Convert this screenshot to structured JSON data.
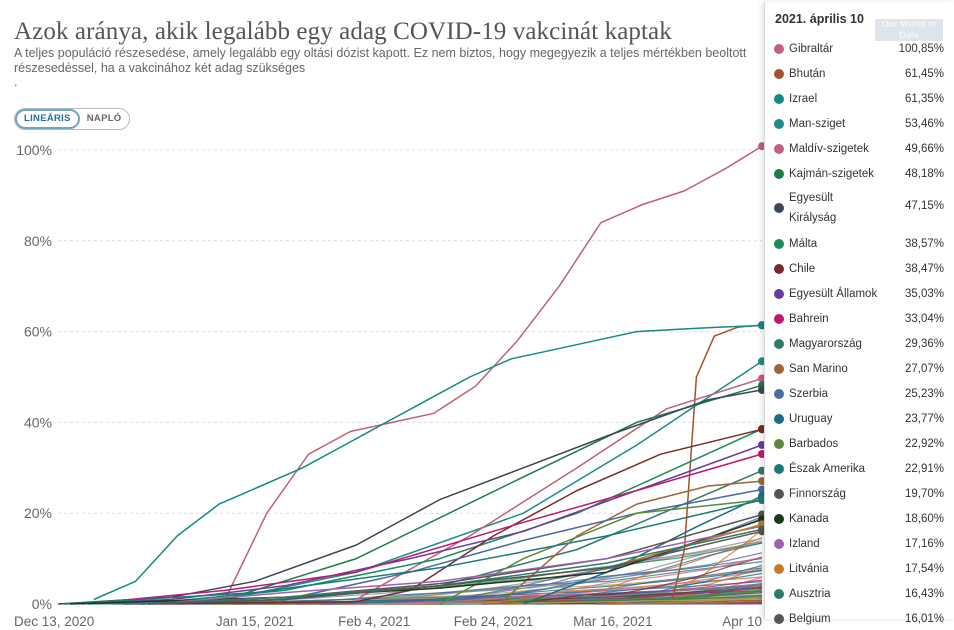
{
  "title": "Azok aránya, akik legalább egy adag COVID-19 vakcinát kaptak",
  "subtitle": "A teljes populáció részesedése, amely legalább egy oltási dózist kapott. Ez nem biztos, hogy megegyezik a teljes mértékben beoltott részesedéssel, ha a vakcinához két adag szükséges",
  "subtitle_dot": ".",
  "toggle": {
    "linear_label": "LINEÁRIS",
    "log_label": "NAPLÓ",
    "selected": "linear"
  },
  "logo_text": "Our World in Data",
  "tooltip": {
    "date": "2021. április 10",
    "rows": [
      {
        "name": "Gibraltár",
        "value": "100,85%",
        "color": "#c06079"
      },
      {
        "name": "Bhután",
        "value": "61,45%",
        "color": "#a0522d"
      },
      {
        "name": "Izrael",
        "value": "61,35%",
        "color": "#138a86"
      },
      {
        "name": "Man-sziget",
        "value": "53,46%",
        "color": "#1f8a8a"
      },
      {
        "name": "Maldív-szigetek",
        "value": "49,66%",
        "color": "#c0607a"
      },
      {
        "name": "Kajmán-szigetek",
        "value": "48,18%",
        "color": "#1e7d4b"
      },
      {
        "name": "Egyesült Királyság",
        "value": "47,15%",
        "color": "#3a4556"
      },
      {
        "name": "Málta",
        "value": "38,57%",
        "color": "#178c5a"
      },
      {
        "name": "Chile",
        "value": "38,47%",
        "color": "#7a2a2a"
      },
      {
        "name": "Egyesült Államok",
        "value": "35,03%",
        "color": "#6a3d9a"
      },
      {
        "name": "Bahrein",
        "value": "33,04%",
        "color": "#c0186f"
      },
      {
        "name": "Magyarország",
        "value": "29,36%",
        "color": "#2f7a6a"
      },
      {
        "name": "San Marino",
        "value": "27,07%",
        "color": "#a0643c"
      },
      {
        "name": "Szerbia",
        "value": "25,23%",
        "color": "#4a6aa0"
      },
      {
        "name": "Uruguay",
        "value": "23,77%",
        "color": "#1e6a8a"
      },
      {
        "name": "Barbados",
        "value": "22,92%",
        "color": "#5a8a3a"
      },
      {
        "name": "Észak Amerika",
        "value": "22,91%",
        "color": "#1a7a7a"
      },
      {
        "name": "Finnország",
        "value": "19,70%",
        "color": "#555555"
      },
      {
        "name": "Kanada",
        "value": "18,60%",
        "color": "#1a3a1a"
      },
      {
        "name": "Izland",
        "value": "17,16%",
        "color": "#a060b0"
      },
      {
        "name": "Litvánia",
        "value": "17,54%",
        "color": "#c87828"
      },
      {
        "name": "Ausztria",
        "value": "16,43%",
        "color": "#2a7a6a"
      },
      {
        "name": "Belgium",
        "value": "16,01%",
        "color": "#555555"
      }
    ]
  },
  "chart_data": {
    "type": "line",
    "title": "Azok aránya, akik legalább egy adag COVID-19 vakcinát kaptak",
    "y_tick_labels": [
      "0%",
      "20%",
      "40%",
      "60%",
      "80%",
      "100%"
    ],
    "ylim": [
      0,
      100
    ],
    "x_tick_labels": [
      "Dec 13, 2020",
      "Jan 15, 2021",
      "Feb 4, 2021",
      "Feb 24, 2021",
      "Mar 16, 2021",
      "Apr 10"
    ],
    "xlim": [
      "2020-12-13",
      "2021-04-10"
    ],
    "grid": "horizontal dashed",
    "series": [
      {
        "name": "Gibraltár",
        "color": "#c06079",
        "x": [
          "2021-01-10",
          "2021-01-17",
          "2021-01-24",
          "2021-01-31",
          "2021-02-07",
          "2021-02-14",
          "2021-02-21",
          "2021-02-28",
          "2021-03-07",
          "2021-03-14",
          "2021-03-21",
          "2021-03-28",
          "2021-04-04",
          "2021-04-10"
        ],
        "y": [
          1,
          20,
          33,
          38,
          40,
          42,
          48,
          58,
          70,
          84,
          88,
          91,
          96,
          100.85
        ]
      },
      {
        "name": "Bhután",
        "color": "#a0522d",
        "x": [
          "2021-03-26",
          "2021-03-28",
          "2021-03-30",
          "2021-04-02",
          "2021-04-06",
          "2021-04-10"
        ],
        "y": [
          1,
          12,
          50,
          59,
          61,
          61.45
        ]
      },
      {
        "name": "Izrael",
        "color": "#138a86",
        "x": [
          "2020-12-19",
          "2020-12-26",
          "2021-01-02",
          "2021-01-09",
          "2021-01-16",
          "2021-01-23",
          "2021-01-30",
          "2021-02-06",
          "2021-02-13",
          "2021-02-20",
          "2021-02-27",
          "2021-03-06",
          "2021-03-13",
          "2021-03-20",
          "2021-03-27",
          "2021-04-03",
          "2021-04-10"
        ],
        "y": [
          1,
          5,
          15,
          22,
          26,
          30,
          35,
          40,
          45,
          50,
          54,
          56,
          58,
          60,
          60.5,
          61,
          61.35
        ]
      },
      {
        "name": "Man-sziget",
        "color": "#1f8a8a",
        "x": [
          "2021-01-10",
          "2021-02-01",
          "2021-03-01",
          "2021-03-20",
          "2021-04-10"
        ],
        "y": [
          1,
          7,
          20,
          35,
          53.46
        ]
      },
      {
        "name": "Maldív-szigetek",
        "color": "#c0607a",
        "x": [
          "2021-02-01",
          "2021-02-20",
          "2021-03-10",
          "2021-03-25",
          "2021-04-10"
        ],
        "y": [
          1,
          15,
          30,
          43,
          49.66
        ]
      },
      {
        "name": "Kajmán-szigetek",
        "color": "#1e7d4b",
        "x": [
          "2021-01-10",
          "2021-02-01",
          "2021-03-01",
          "2021-03-20",
          "2021-04-10"
        ],
        "y": [
          1,
          10,
          28,
          40,
          48.18
        ]
      },
      {
        "name": "Egyesült Királyság",
        "color": "#3a4556",
        "x": [
          "2020-12-13",
          "2021-01-01",
          "2021-01-15",
          "2021-02-01",
          "2021-02-15",
          "2021-03-01",
          "2021-03-15",
          "2021-04-01",
          "2021-04-10"
        ],
        "y": [
          0,
          1.5,
          5,
          13,
          23,
          30,
          37,
          45,
          47.15
        ]
      },
      {
        "name": "Málta",
        "color": "#178c5a",
        "x": [
          "2020-12-27",
          "2021-01-20",
          "2021-02-15",
          "2021-03-10",
          "2021-04-10"
        ],
        "y": [
          0,
          3,
          10,
          20,
          38.57
        ]
      },
      {
        "name": "Chile",
        "color": "#7a2a2a",
        "x": [
          "2020-12-24",
          "2021-02-01",
          "2021-02-10",
          "2021-02-24",
          "2021-03-10",
          "2021-03-24",
          "2021-04-10"
        ],
        "y": [
          0,
          0.5,
          3,
          15,
          25,
          33,
          38.47
        ]
      },
      {
        "name": "Egyesült Államok",
        "color": "#6a3d9a",
        "x": [
          "2020-12-14",
          "2021-01-01",
          "2021-01-20",
          "2021-02-10",
          "2021-03-01",
          "2021-03-20",
          "2021-04-10"
        ],
        "y": [
          0,
          1,
          4,
          10,
          16,
          25,
          35.03
        ]
      },
      {
        "name": "Bahrein",
        "color": "#c0186f",
        "x": [
          "2020-12-17",
          "2021-01-10",
          "2021-02-01",
          "2021-03-01",
          "2021-03-20",
          "2021-04-10"
        ],
        "y": [
          0,
          3,
          7,
          18,
          25,
          33.04
        ]
      },
      {
        "name": "Magyarország",
        "color": "#2f7a6a",
        "x": [
          "2020-12-26",
          "2021-01-20",
          "2021-02-15",
          "2021-03-10",
          "2021-04-10"
        ],
        "y": [
          0,
          1,
          4,
          12,
          29.36
        ]
      },
      {
        "name": "San Marino",
        "color": "#a0643c",
        "x": [
          "2021-02-25",
          "2021-03-10",
          "2021-03-20",
          "2021-04-01",
          "2021-04-10"
        ],
        "y": [
          0,
          15,
          22,
          26,
          27.07
        ]
      },
      {
        "name": "Szerbia",
        "color": "#4a6aa0",
        "x": [
          "2020-12-24",
          "2021-01-20",
          "2021-02-10",
          "2021-03-01",
          "2021-03-20",
          "2021-04-10"
        ],
        "y": [
          0,
          1,
          7,
          14,
          20,
          25.23
        ]
      },
      {
        "name": "Uruguay",
        "color": "#1e6a8a",
        "x": [
          "2021-03-01",
          "2021-03-15",
          "2021-03-30",
          "2021-04-10"
        ],
        "y": [
          0,
          7,
          17,
          23.77
        ]
      },
      {
        "name": "Barbados",
        "color": "#5a8a3a",
        "x": [
          "2021-02-15",
          "2021-03-01",
          "2021-03-20",
          "2021-04-10"
        ],
        "y": [
          0,
          10,
          20,
          22.92
        ]
      },
      {
        "name": "Észak Amerika",
        "color": "#1a7a7a",
        "x": [
          "2020-12-14",
          "2021-01-15",
          "2021-02-15",
          "2021-03-15",
          "2021-04-10"
        ],
        "y": [
          0,
          2.5,
          8,
          15,
          22.91
        ]
      },
      {
        "name": "Finnország",
        "color": "#555555",
        "x": [
          "2020-12-27",
          "2021-01-20",
          "2021-02-15",
          "2021-03-15",
          "2021-04-10"
        ],
        "y": [
          0,
          1.5,
          4.5,
          10,
          19.7
        ]
      },
      {
        "name": "Kanada",
        "color": "#1a3a1a",
        "x": [
          "2020-12-15",
          "2021-01-20",
          "2021-02-15",
          "2021-03-15",
          "2021-04-10"
        ],
        "y": [
          0,
          1.5,
          3.5,
          7,
          18.6
        ]
      },
      {
        "name": "Izland",
        "color": "#a060b0",
        "x": [
          "2020-12-29",
          "2021-01-20",
          "2021-02-15",
          "2021-03-15",
          "2021-04-10"
        ],
        "y": [
          0,
          2.5,
          5,
          10,
          17.16
        ]
      },
      {
        "name": "Litvánia",
        "color": "#c87828",
        "x": [
          "2020-12-27",
          "2021-01-20",
          "2021-02-15",
          "2021-03-15",
          "2021-04-10"
        ],
        "y": [
          0,
          1.5,
          4,
          8,
          17.54
        ]
      },
      {
        "name": "Ausztria",
        "color": "#2a7a6a",
        "x": [
          "2020-12-27",
          "2021-01-20",
          "2021-02-15",
          "2021-03-15",
          "2021-04-10"
        ],
        "y": [
          0,
          1.5,
          4,
          9,
          16.43
        ]
      },
      {
        "name": "Belgium",
        "color": "#555555",
        "x": [
          "2020-12-28",
          "2021-01-20",
          "2021-02-15",
          "2021-03-15",
          "2021-04-10"
        ],
        "y": [
          0,
          1,
          4,
          8,
          16.01
        ]
      }
    ]
  }
}
